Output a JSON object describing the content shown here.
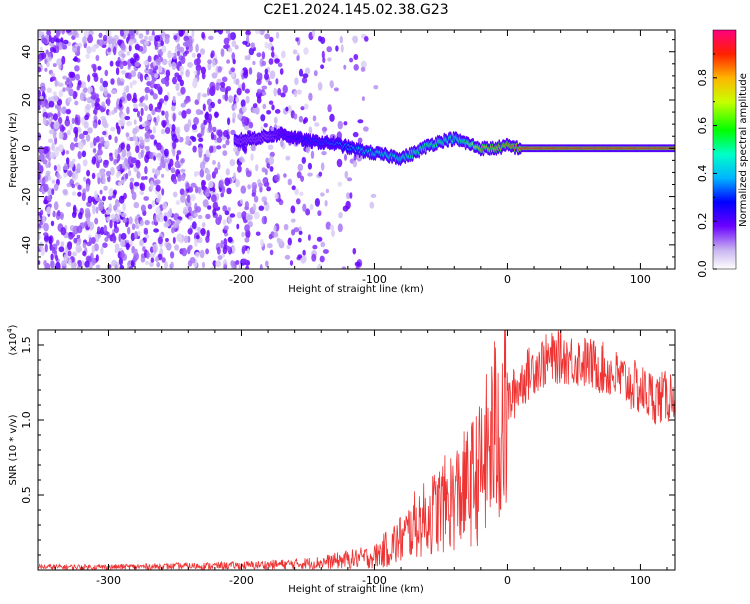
{
  "title": "C2E1.2024.145.02.38.G23",
  "chart_data": [
    {
      "type": "heatmap",
      "xlabel": "Height of straight line (km)",
      "ylabel": "Frequency (Hz)",
      "xlim": [
        -353,
        126
      ],
      "ylim": [
        -50,
        49
      ],
      "xticks": [
        -300,
        -200,
        -100,
        0,
        100
      ],
      "xtick_labels": [
        "-300",
        "-200",
        "-100",
        "0",
        "100"
      ],
      "yticks": [
        -40,
        -20,
        0,
        20,
        40
      ],
      "ytick_labels": [
        "-40",
        "-20",
        "0",
        "20",
        "40"
      ],
      "colorbar": {
        "label": "Normalized spectral amplitude",
        "range": [
          0,
          1
        ],
        "ticks": [
          0.0,
          0.2,
          0.4,
          0.6,
          0.8
        ],
        "tick_labels": [
          "0.0",
          "0.2",
          "0.4",
          "0.6",
          "0.8"
        ]
      },
      "tone_track": {
        "description_points_x": [
          -205,
          -180,
          -170,
          -150,
          -130,
          -110,
          -90,
          -80,
          -70,
          -60,
          -50,
          -40,
          -30,
          -20,
          -10,
          0,
          10,
          126
        ],
        "frequency_hz": [
          3,
          5,
          6,
          3,
          2,
          -1,
          -3,
          -4,
          -2,
          1,
          3,
          4,
          2,
          0,
          0,
          1,
          0,
          0
        ],
        "amplitude": [
          0.2,
          0.2,
          0.25,
          0.3,
          0.35,
          0.45,
          0.5,
          0.5,
          0.55,
          0.55,
          0.55,
          0.5,
          0.6,
          0.8,
          0.8,
          0.85,
          0.9,
          0.9
        ]
      },
      "noise_extent_x": [
        -353,
        -95
      ]
    },
    {
      "type": "line",
      "xlabel": "Height of straight line (km)",
      "ylabel": "SNR (10 * v/v)",
      "multiplier_label": "(x10",
      "multiplier_exp": "4",
      "xlim": [
        -353,
        126
      ],
      "ylim": [
        0,
        16000
      ],
      "xticks": [
        -300,
        -200,
        -100,
        0,
        100
      ],
      "xtick_labels": [
        "-300",
        "-200",
        "-100",
        "0",
        "100"
      ],
      "yticks": [
        5000,
        10000,
        15000
      ],
      "ytick_labels": [
        "0.5",
        "1.0",
        "1.5"
      ],
      "color": "#ee3333",
      "series_envelope": {
        "x": [
          -353,
          -300,
          -250,
          -200,
          -160,
          -140,
          -120,
          -100,
          -80,
          -70,
          -60,
          -50,
          -40,
          -30,
          -20,
          -10,
          0,
          10,
          20,
          30,
          40,
          50,
          60,
          70,
          80,
          90,
          100,
          110,
          120,
          126
        ],
        "y": [
          200,
          200,
          250,
          300,
          400,
          500,
          700,
          900,
          2000,
          3000,
          3500,
          4200,
          4800,
          5500,
          6500,
          9000,
          11000,
          12500,
          13500,
          14000,
          14200,
          14000,
          13800,
          13500,
          13000,
          12500,
          12000,
          11500,
          11500,
          12000
        ]
      }
    }
  ]
}
